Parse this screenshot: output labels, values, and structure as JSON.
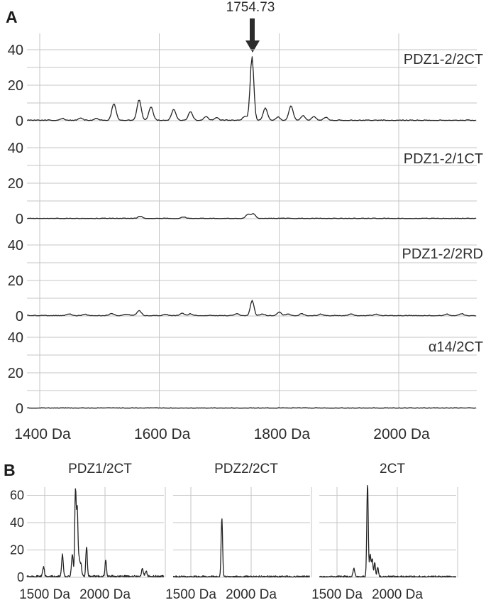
{
  "figure": {
    "panel_a_letter": "A",
    "panel_b_letter": "B"
  },
  "colors": {
    "trace": "#242424",
    "grid": "#c5c5c5",
    "text": "#2b2b2b",
    "background": "#ffffff"
  },
  "chart_data": [
    {
      "type": "line",
      "panel": "A",
      "title": "",
      "xlabel": "",
      "ylabel": "",
      "x_unit": "Da",
      "x_range": [
        1379,
        2130
      ],
      "y_range": [
        0,
        48
      ],
      "grid": true,
      "annotation": {
        "text": "1754.73",
        "x": 1754.73
      },
      "x_ticks": [
        {
          "value": 1400,
          "label": "1400 Da"
        },
        {
          "value": 1600,
          "label": "1600 Da"
        },
        {
          "value": 1800,
          "label": "1800 Da"
        },
        {
          "value": 2000,
          "label": "2000 Da"
        }
      ],
      "y_ticks": [
        {
          "value": 0,
          "label": "0"
        },
        {
          "value": 20,
          "label": "20"
        },
        {
          "value": 40,
          "label": "40"
        }
      ],
      "series": [
        {
          "name": "PDZ1-2/2CT",
          "noise": 0.5,
          "peaks": [
            [
              1438,
              1
            ],
            [
              1468,
              1.2
            ],
            [
              1495,
              1
            ],
            [
              1524,
              9.5
            ],
            [
              1566,
              11.5
            ],
            [
              1586,
              7.5
            ],
            [
              1624,
              6.3
            ],
            [
              1652,
              5
            ],
            [
              1678,
              2
            ],
            [
              1695,
              1.5
            ],
            [
              1743,
              2.2
            ],
            [
              1754.73,
              36,
              3
            ],
            [
              1777,
              7
            ],
            [
              1798,
              1.8
            ],
            [
              1820,
              8.3
            ],
            [
              1840,
              2.6
            ],
            [
              1858,
              2.2
            ],
            [
              1878,
              1.6
            ]
          ]
        },
        {
          "name": "PDZ1-2/1CT",
          "noise": 0.35,
          "peaks": [
            [
              1568,
              1.3
            ],
            [
              1640,
              0.8
            ],
            [
              1748,
              2.3
            ],
            [
              1757,
              2.7
            ]
          ]
        },
        {
          "name": "PDZ1-2/2RD",
          "noise": 0.45,
          "peaks": [
            [
              1448,
              1
            ],
            [
              1475,
              0.8
            ],
            [
              1520,
              1.3
            ],
            [
              1545,
              0.9
            ],
            [
              1566,
              2.9
            ],
            [
              1610,
              0.8
            ],
            [
              1638,
              1.4
            ],
            [
              1652,
              1
            ],
            [
              1730,
              1
            ],
            [
              1755,
              8.5,
              3
            ],
            [
              1772,
              1
            ],
            [
              1800,
              1.9
            ],
            [
              1815,
              1
            ],
            [
              1838,
              1
            ],
            [
              1870,
              0.9
            ],
            [
              1920,
              1
            ],
            [
              1962,
              0.9
            ],
            [
              2080,
              0.9
            ],
            [
              2105,
              1.1
            ]
          ]
        },
        {
          "name": "α14/2CT",
          "noise": 0.4,
          "peaks": []
        }
      ]
    },
    {
      "type": "line",
      "panel": "B",
      "title": "",
      "xlabel": "",
      "ylabel": "",
      "x_unit": "Da",
      "x_range": [
        1353,
        2488
      ],
      "y_range": [
        0,
        67.5
      ],
      "grid": true,
      "x_gridlines": [
        1500,
        2000,
        2500
      ],
      "x_ticks": [
        {
          "value": 1500,
          "label": "1500 Da"
        },
        {
          "value": 2000,
          "label": "2000 Da"
        }
      ],
      "y_ticks": [
        {
          "value": 0,
          "label": "0"
        },
        {
          "value": 20,
          "label": "20"
        },
        {
          "value": 40,
          "label": "40"
        },
        {
          "value": 60,
          "label": "60"
        }
      ],
      "series": [
        {
          "name": "PDZ1/2CT",
          "noise": 1.4,
          "peaks": [
            [
              1490,
              7
            ],
            [
              1647,
              16
            ],
            [
              1729,
              16
            ],
            [
              1755,
              62,
              6
            ],
            [
              1770,
              48,
              6
            ],
            [
              1785,
              12,
              6
            ],
            [
              1800,
              9
            ],
            [
              1847,
              22,
              6
            ],
            [
              2006,
              12,
              6
            ],
            [
              2310,
              6
            ],
            [
              2340,
              4
            ]
          ]
        },
        {
          "name": "PDZ2/2CT",
          "noise": 1.1,
          "peaks": [
            [
              1757,
              43,
              6
            ]
          ]
        },
        {
          "name": "2CT",
          "noise": 1.1,
          "peaks": [
            [
              1640,
              6
            ],
            [
              1753,
              67,
              6
            ],
            [
              1775,
              16,
              6
            ],
            [
              1792,
              13,
              6
            ],
            [
              1813,
              10,
              6
            ],
            [
              1838,
              7,
              6
            ]
          ]
        }
      ]
    }
  ]
}
